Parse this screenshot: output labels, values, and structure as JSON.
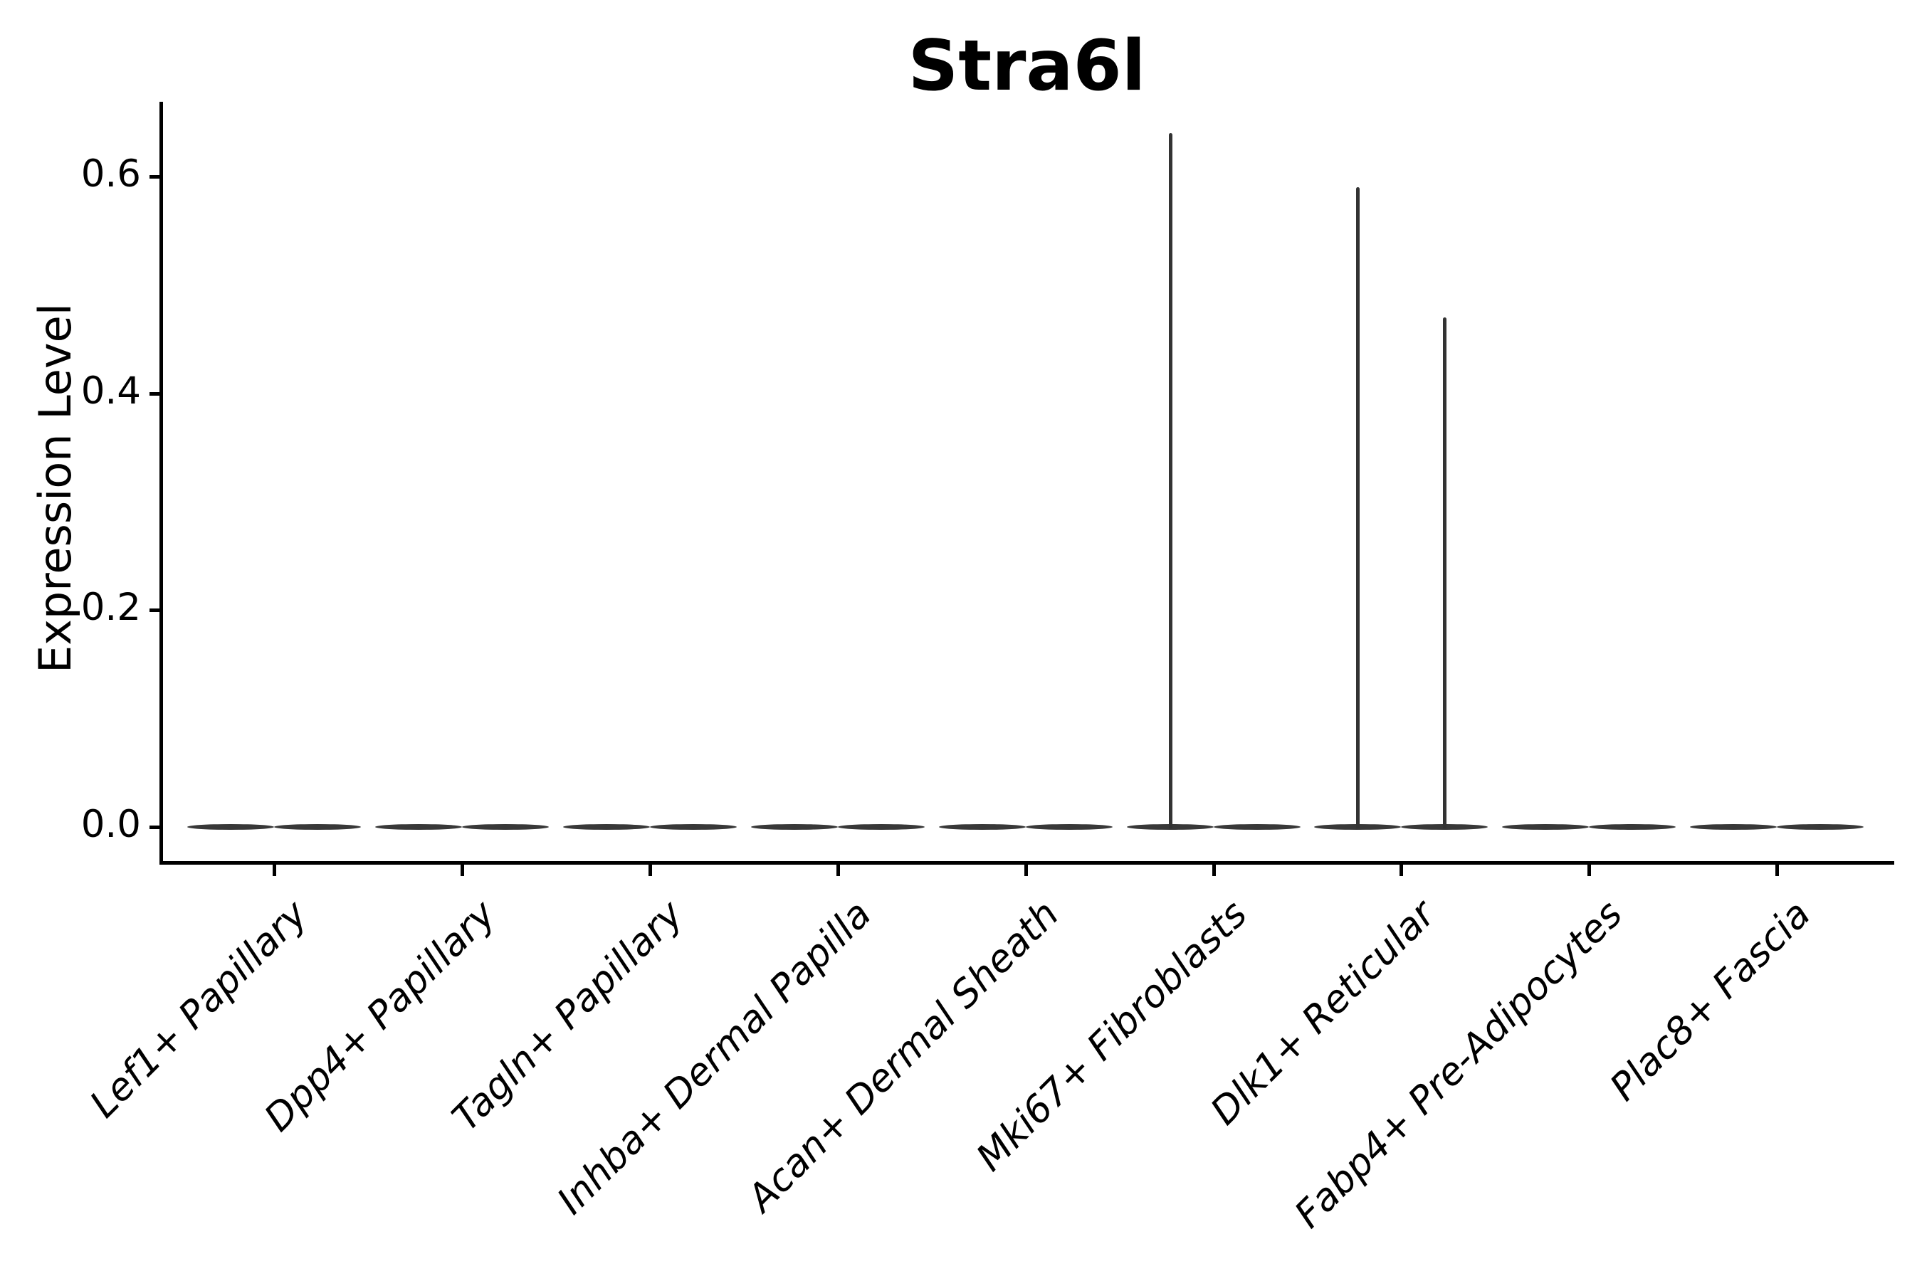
{
  "title": "Stra6l",
  "axes": {
    "y": {
      "label": "Expression Level",
      "ticks": [
        {
          "value": 0.0,
          "label": "0.0"
        },
        {
          "value": 0.2,
          "label": "0.2"
        },
        {
          "value": 0.4,
          "label": "0.4"
        },
        {
          "value": 0.6,
          "label": "0.6"
        }
      ]
    },
    "x": {
      "categories": [
        "Lef1+ Papillary",
        "Dpp4+ Papillary",
        "Tagln+ Papillary",
        "Inhba+ Dermal Papilla",
        "Acan+ Dermal Sheath",
        "Mki67+ Fibroblasts",
        "Dlk1+ Reticular",
        "Fabp4+ Pre-Adipocytes",
        "Plac8+ Fascia"
      ]
    }
  },
  "style": {
    "background": "#ffffff",
    "axis_color": "#000000",
    "text_color": "#000000",
    "violin_color": "#383838",
    "spike_color": "#333333"
  },
  "chart_data": {
    "type": "violin",
    "title": "Stra6l",
    "xlabel": "",
    "ylabel": "Expression Level",
    "yticks": [
      0.0,
      0.2,
      0.4,
      0.6
    ],
    "ylim": [
      -0.04,
      0.68
    ],
    "baseline_value": 0.0,
    "grid": false,
    "legend_position": "none",
    "x_label_style": "italic, rotated 45 degrees, right-anchored at tick",
    "categories": [
      "Lef1+ Papillary",
      "Dpp4+ Papillary",
      "Tagln+ Papillary",
      "Inhba+ Dermal Papilla",
      "Acan+ Dermal Sheath",
      "Mki67+ Fibroblasts",
      "Dlk1+ Reticular",
      "Fabp4+ Pre-Adipocytes",
      "Plac8+ Fascia"
    ],
    "violins": [
      {
        "category": "Lef1+ Papillary",
        "max_expression": 0.0,
        "spikes": []
      },
      {
        "category": "Dpp4+ Papillary",
        "max_expression": 0.0,
        "spikes": []
      },
      {
        "category": "Tagln+ Papillary",
        "max_expression": 0.0,
        "spikes": []
      },
      {
        "category": "Inhba+ Dermal Papilla",
        "max_expression": 0.0,
        "spikes": []
      },
      {
        "category": "Acan+ Dermal Sheath",
        "max_expression": 0.0,
        "spikes": []
      },
      {
        "category": "Mki67+ Fibroblasts",
        "max_expression": 0.64,
        "spikes": [
          {
            "side": "left",
            "peak": 0.64
          }
        ]
      },
      {
        "category": "Dlk1+ Reticular",
        "max_expression": 0.59,
        "spikes": [
          {
            "side": "left",
            "peak": 0.59
          },
          {
            "side": "right",
            "peak": 0.47
          }
        ]
      },
      {
        "category": "Fabp4+ Pre-Adipocytes",
        "max_expression": 0.0,
        "spikes": []
      },
      {
        "category": "Plac8+ Fascia",
        "max_expression": 0.0,
        "spikes": []
      }
    ],
    "note": "All violins are flat lens shapes collapsed at expression 0; only thin density spikes rise above baseline for Mki67+ Fibroblasts (~0.64) and Dlk1+ Reticular (~0.59 left, ~0.47 right)."
  }
}
